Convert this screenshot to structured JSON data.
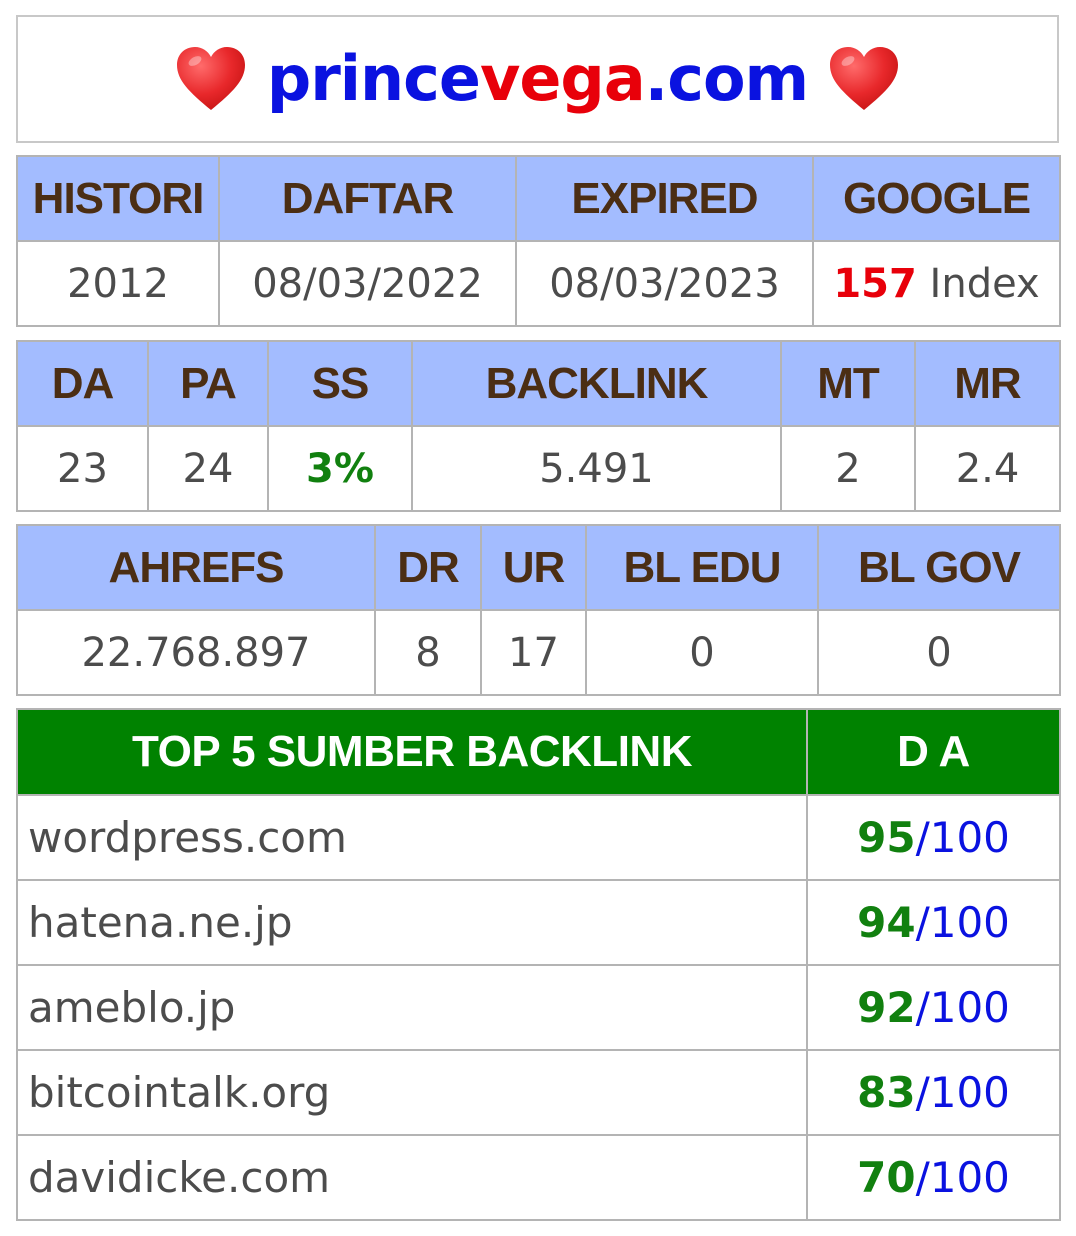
{
  "header": {
    "domain_part1": "prince",
    "domain_part2": "vega",
    "domain_part3": ".com",
    "heart_icon": "heart-icon",
    "colors": {
      "blue": "#0a12e0",
      "red": "#e8000a"
    }
  },
  "table1": {
    "headers": [
      "HISTORI",
      "DAFTAR",
      "EXPIRED",
      "GOOGLE"
    ],
    "histori": "2012",
    "daftar": "08/03/2022",
    "expired": "08/03/2023",
    "google_count": "157",
    "google_suffix": " Index"
  },
  "table2": {
    "headers": [
      "DA",
      "PA",
      "SS",
      "BACKLINK",
      "MT",
      "MR"
    ],
    "values": [
      "23",
      "24",
      "3%",
      "5.491",
      "2",
      "2.4"
    ]
  },
  "table3": {
    "headers": [
      "AHREFS",
      "DR",
      "UR",
      "BL EDU",
      "BL GOV"
    ],
    "values": [
      "22.768.897",
      "8",
      "17",
      "0",
      "0"
    ]
  },
  "top_backlinks": {
    "header_source": "TOP 5 SUMBER BACKLINK",
    "header_da": "D A",
    "rows": [
      {
        "source": "wordpress.com",
        "da": "95",
        "max": "100"
      },
      {
        "source": "hatena.ne.jp",
        "da": "94",
        "max": "100"
      },
      {
        "source": "ameblo.jp",
        "da": "92",
        "max": "100"
      },
      {
        "source": "bitcointalk.org",
        "da": "83",
        "max": "100"
      },
      {
        "source": "davidicke.com",
        "da": "70",
        "max": "100"
      }
    ],
    "colors": {
      "header_bg": "#008200",
      "score": "#11800f",
      "max": "#0a12e0"
    }
  }
}
